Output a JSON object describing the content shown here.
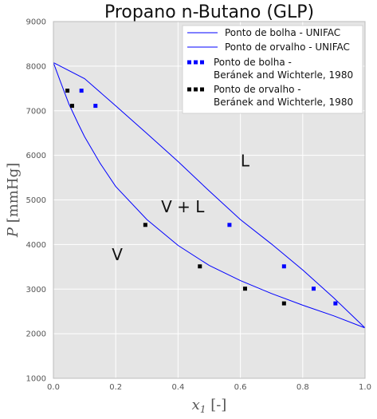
{
  "chart_data": {
    "type": "line",
    "title": "Propano n-Butano (GLP)",
    "xlabel": "x_1 [-]",
    "ylabel": "P [mmHg]",
    "xlim": [
      0.0,
      1.0
    ],
    "ylim": [
      1000,
      9000
    ],
    "xticks": [
      "0.0",
      "0.2",
      "0.4",
      "0.6",
      "0.8",
      "1.0"
    ],
    "yticks": [
      "1000",
      "2000",
      "3000",
      "4000",
      "5000",
      "6000",
      "7000",
      "8000",
      "9000"
    ],
    "grid": true,
    "legend_position": "top-right",
    "colors": {
      "bubble": "#0000ff",
      "dew": "#0000ff",
      "exp_bubble": "#0000ff",
      "exp_dew": "#000000",
      "background": "#e5e5e5",
      "grid": "#ffffff"
    },
    "series": [
      {
        "name": "Ponto de bolha - UNIFAC",
        "kind": "line",
        "x": [
          0.0,
          0.1,
          0.2,
          0.3,
          0.4,
          0.5,
          0.6,
          0.7,
          0.8,
          0.9,
          1.0
        ],
        "y": [
          8080,
          7720,
          7110,
          6490,
          5860,
          5200,
          4560,
          4010,
          3430,
          2800,
          2130
        ]
      },
      {
        "name": "Ponto de orvalho - UNIFAC",
        "kind": "line",
        "x": [
          0.0,
          0.02,
          0.05,
          0.08,
          0.1,
          0.15,
          0.2,
          0.3,
          0.4,
          0.5,
          0.6,
          0.7,
          0.8,
          0.9,
          1.0
        ],
        "y": [
          8080,
          7700,
          7150,
          6700,
          6420,
          5820,
          5300,
          4560,
          3980,
          3530,
          3190,
          2900,
          2640,
          2400,
          2130
        ]
      },
      {
        "name": "Ponto de bolha - Beránek and Wichterle, 1980",
        "kind": "scatter",
        "x": [
          0.09,
          0.135,
          0.565,
          0.74,
          0.835,
          0.905
        ],
        "y": [
          7450,
          7110,
          4440,
          3510,
          3010,
          2680
        ]
      },
      {
        "name": "Ponto de orvalho -  Beránek and Wichterle, 1980",
        "kind": "scatter",
        "x": [
          0.045,
          0.06,
          0.295,
          0.47,
          0.615,
          0.74
        ],
        "y": [
          7450,
          7110,
          4440,
          3510,
          3010,
          2680
        ]
      }
    ],
    "legend_lines": [
      [
        "Ponto de bolha - UNIFAC"
      ],
      [
        "Ponto de orvalho - UNIFAC"
      ],
      [
        "Ponto de bolha -",
        "Beránek and Wichterle, 1980"
      ],
      [
        "Ponto de orvalho -",
        " Beránek and Wichterle, 1980"
      ]
    ],
    "annotations": [
      {
        "text": "L",
        "x": 0.615,
        "y": 5750
      },
      {
        "text": "V + L",
        "x": 0.415,
        "y": 4720
      },
      {
        "text": "V",
        "x": 0.205,
        "y": 3650
      }
    ]
  }
}
